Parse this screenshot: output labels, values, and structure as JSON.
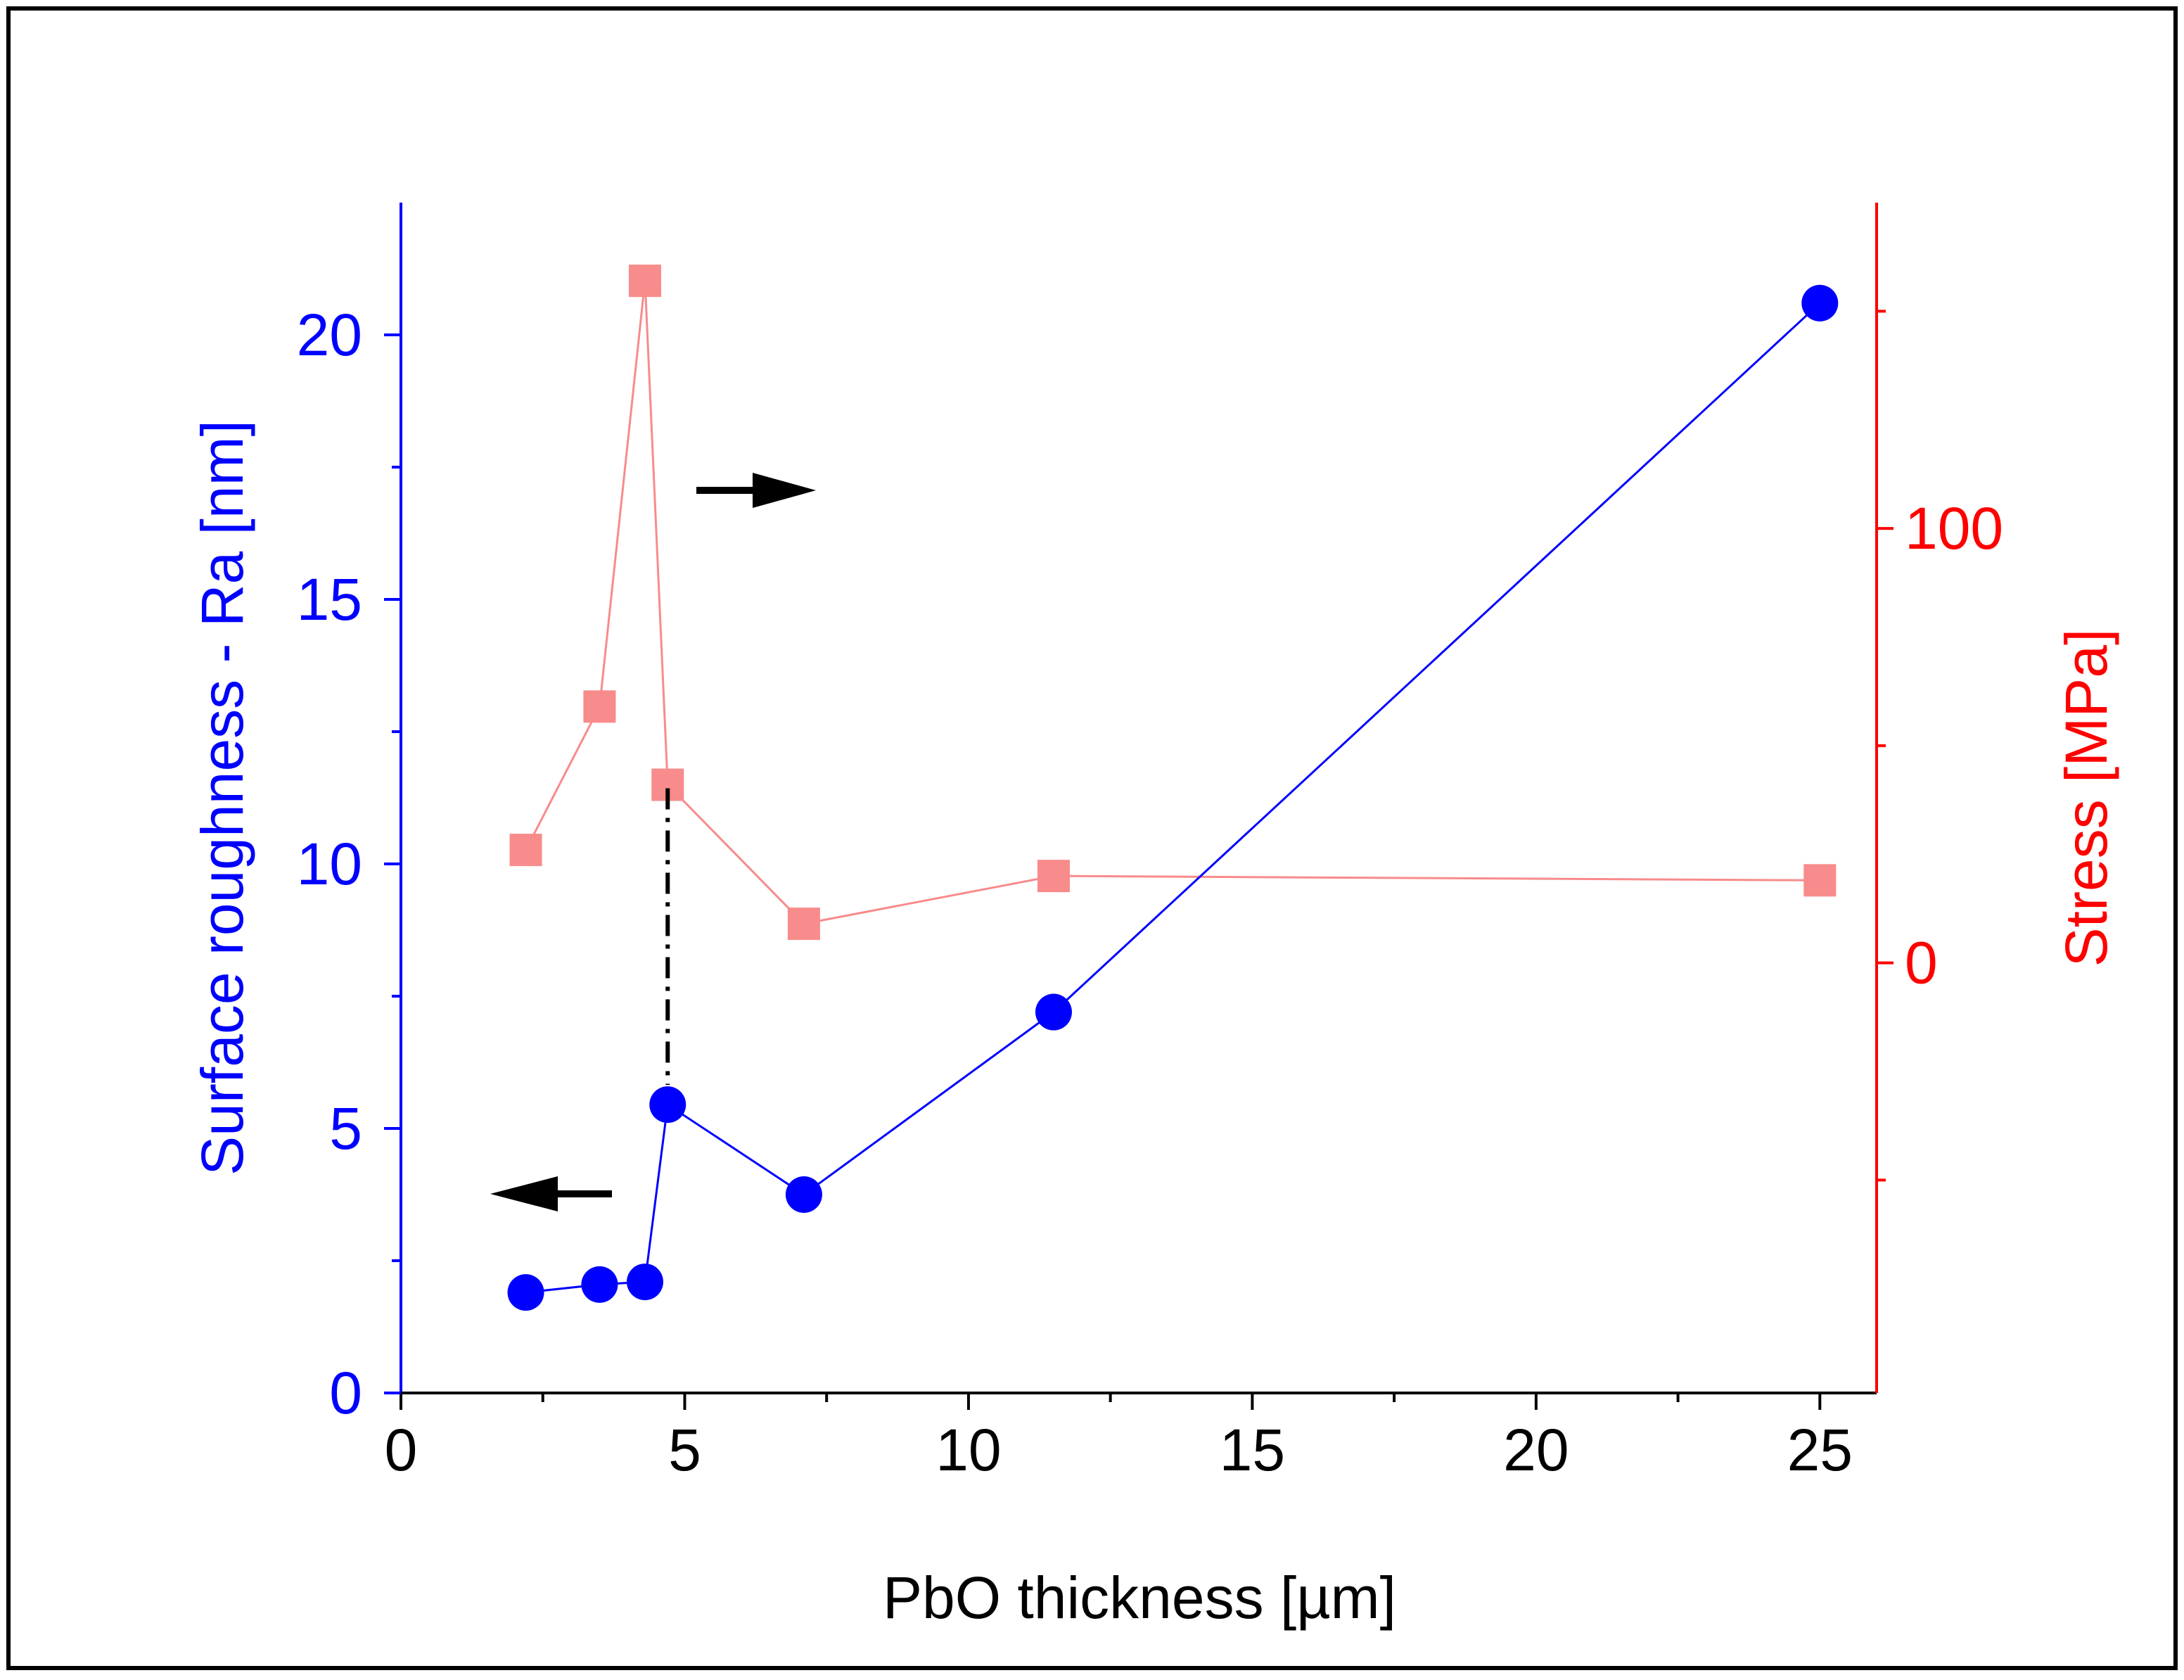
{
  "chart_data": {
    "type": "line",
    "xlabel": "PbO thickness [µm]",
    "xlim": [
      0,
      26
    ],
    "x_ticks": [
      0,
      5,
      10,
      15,
      20,
      25
    ],
    "x_tick_labels": [
      "0",
      "5",
      "10",
      "15",
      "20",
      "25"
    ],
    "y_left": {
      "label": "Surface roughness - Ra [nm]",
      "lim": [
        0,
        22.5
      ],
      "ticks": [
        0,
        5,
        10,
        15,
        20
      ],
      "tick_labels": [
        "0",
        "5",
        "10",
        "15",
        "20"
      ],
      "color": "#0000ff"
    },
    "y_right": {
      "label": "Stress [MPa]",
      "lim": [
        -99,
        175
      ],
      "ticks": [
        0,
        100
      ],
      "tick_labels": [
        "0",
        "100"
      ],
      "color": "#ff0000"
    },
    "series": [
      {
        "name": "Surface roughness - Ra",
        "axis": "left",
        "marker": "circle",
        "color": "#0000ff",
        "x": [
          2.2,
          3.5,
          4.3,
          4.7,
          7.1,
          11.5,
          25.0
        ],
        "values": [
          1.9,
          2.05,
          2.1,
          5.45,
          3.75,
          7.2,
          20.6
        ]
      },
      {
        "name": "Stress",
        "axis": "right",
        "marker": "square",
        "color": "#f88b8b",
        "x": [
          2.2,
          3.5,
          4.3,
          4.7,
          7.1,
          11.5,
          25.0
        ],
        "values": [
          26,
          59,
          157,
          41,
          9,
          20,
          19
        ]
      }
    ],
    "annotations": [
      {
        "type": "arrow",
        "direction": "right",
        "meaning": "stress series uses right axis"
      },
      {
        "type": "arrow",
        "direction": "left",
        "meaning": "roughness series uses left axis"
      },
      {
        "type": "dash-dot-line",
        "x": 4.7,
        "from": "roughness 5.45 nm",
        "to": "stress 41 MPa"
      }
    ]
  }
}
